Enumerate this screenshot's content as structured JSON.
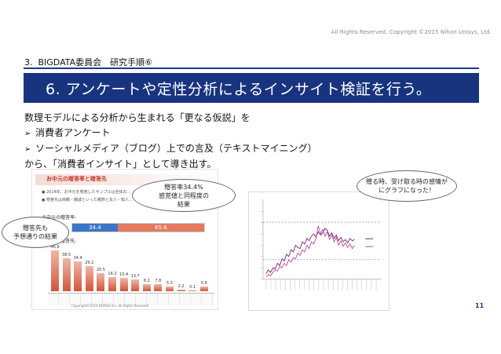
{
  "copyright": "All Rights Reserved, Copyright ©2015 Nihon Unisys, Ltd.",
  "section_title": "3.  BIGDATA委員会　研究手順⑥",
  "banner_title": "6. アンケートや定性分析によるインサイト検証を行う。",
  "body": {
    "line1": "数理モデルによる分析から生まれる「更なる仮説」を",
    "bullet1": "消費者アンケート",
    "bullet2": "ソーシャルメディア（ブログ）上での言及（テキストマイニング）",
    "line4": "から、「消費者インサイト」として導き出す。",
    "bullet_mark": "➢"
  },
  "left_chart": {
    "title": "お中元の贈答率と贈答先",
    "bullets": [
      "● 2014年、お中元を贈答したサンプルは全体の…",
      "● 贈答先は両親・親戚といった親族と友人・知人…"
    ],
    "section_a": "-お中元の贈答率-",
    "section_b": "-お中元の贈答先-",
    "stack_values": [
      "34.4",
      "65.6"
    ],
    "bar_values": [
      "46.9",
      "38.5",
      "34.4",
      "29.2",
      "20.5",
      "16.2",
      "15.4",
      "13.7",
      "8.2",
      "7.8",
      "5.3",
      "2.2",
      "0.1",
      "5.6"
    ],
    "footer": "Copyright©2014 INTAGE Inc. All Rights Reserved."
  },
  "right_chart": {
    "type": "line",
    "series": [
      {
        "values": [
          5,
          8,
          6,
          10,
          9,
          14,
          12,
          18,
          16,
          22,
          20,
          26,
          24,
          30,
          28,
          27,
          33,
          31,
          36,
          34,
          38,
          40,
          37,
          42,
          39,
          41,
          45,
          43,
          38,
          41,
          36,
          39,
          34,
          37,
          33,
          35,
          32,
          36,
          34,
          35
        ]
      },
      {
        "values": [
          2,
          4,
          3,
          6,
          8,
          7,
          11,
          10,
          14,
          12,
          17,
          15,
          19,
          18,
          23,
          21,
          26,
          24,
          30,
          27,
          33,
          31,
          36,
          47,
          40,
          44,
          38,
          42,
          35,
          39,
          33,
          37,
          30,
          34,
          29,
          32,
          28,
          31,
          27,
          30
        ]
      }
    ],
    "ylim": [
      0,
      70
    ]
  },
  "callouts": {
    "c1_line1": "贈答率34.4%",
    "c1_line2": "感覚値と同程度の",
    "c1_line3": "結果",
    "c2_line1": "贈答先も",
    "c2_line2": "予想通りの結果",
    "c3_line1": "贈る時、受け取る時の感情が",
    "c3_line2": "にグラフになった！"
  },
  "page_number": "11"
}
